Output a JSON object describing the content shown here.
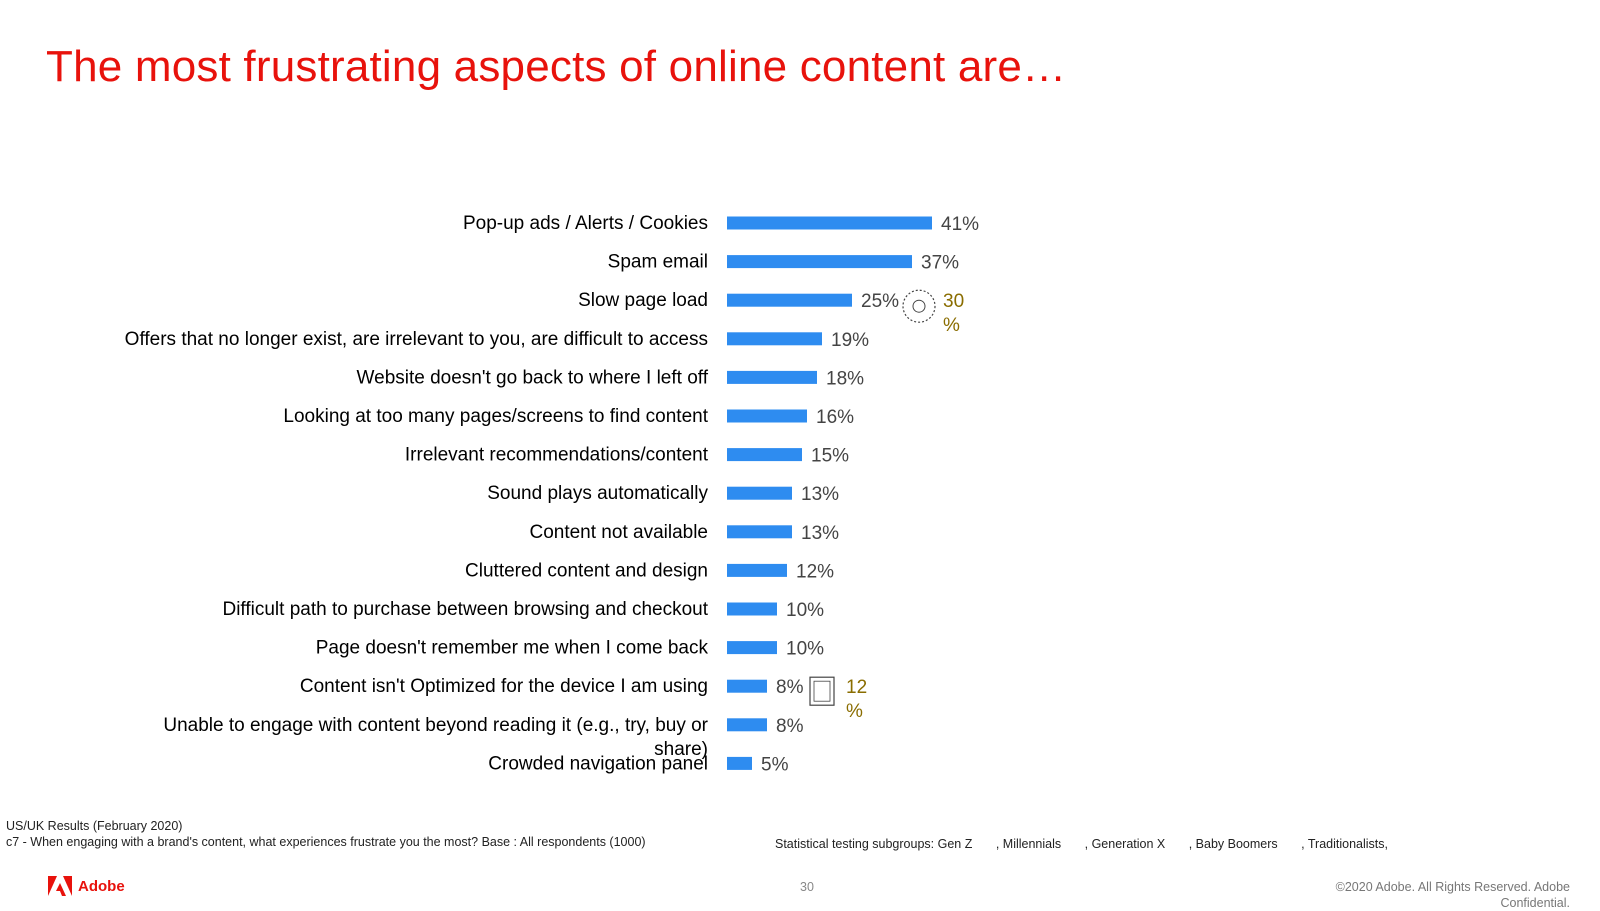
{
  "title": "The most frustrating aspects of online content are…",
  "chart_data": {
    "type": "bar",
    "orientation": "horizontal",
    "categories": [
      "Pop-up ads / Alerts / Cookies",
      "Spam email",
      "Slow page load",
      "Offers that no longer exist, are irrelevant to you, are difficult to access",
      "Website doesn't go back to where I left off",
      "Looking at too many pages/screens to find content",
      "Irrelevant recommendations/content",
      "Sound plays automatically",
      "Content not available",
      "Cluttered content and design",
      "Difficult path to purchase between browsing and checkout",
      "Page doesn't remember me when I come back",
      "Content isn't Optimized for the device I am using",
      "Unable to engage with content beyond reading it (e.g., try, buy or share)",
      "Crowded navigation panel"
    ],
    "values": [
      41,
      37,
      25,
      19,
      18,
      16,
      15,
      13,
      13,
      12,
      10,
      10,
      8,
      8,
      5
    ],
    "value_labels": [
      "41%",
      "37%",
      "25%",
      "19%",
      "18%",
      "16%",
      "15%",
      "13%",
      "13%",
      "12%",
      "10%",
      "10%",
      "8%",
      "8%",
      "5%"
    ],
    "xlim": [
      0,
      41
    ],
    "bar_color": "#2e8cf0",
    "callouts": [
      {
        "category_index": 2,
        "icon": "baby-boomers-disc-icon",
        "value_label": "30\n%"
      },
      {
        "category_index": 12,
        "icon": "gen-z-phone-icon",
        "value_label": "12\n%"
      }
    ],
    "callout_color": "#8a6d00"
  },
  "footnotes": {
    "line1": "US/UK Results (February 2020)",
    "line2": "c7 - When engaging with a brand's content, what experiences frustrate you the most? Base : All respondents (1000)"
  },
  "subgroups": {
    "label": "Statistical testing subgroups:",
    "items": [
      "Gen Z",
      ", Millennials",
      ", Generation X",
      ", Baby Boomers",
      ", Traditionalists,"
    ]
  },
  "logo_text": "Adobe",
  "page_number": "30",
  "copyright_line1": "©2020 Adobe. All Rights Reserved. Adobe",
  "copyright_line2": "Confidential."
}
